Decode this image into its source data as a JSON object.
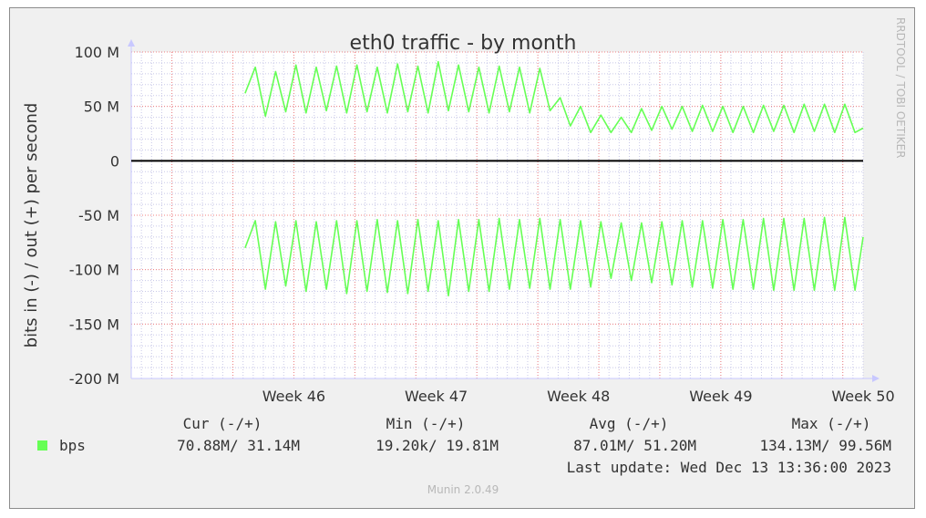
{
  "chart_data": {
    "type": "line",
    "title": "eth0 traffic - by month",
    "ylabel": "bits in (-) / out (+) per second",
    "side_label": "RRDTOOL / TOBI OETIKER",
    "ylim": [
      -200000000,
      100000000
    ],
    "y_ticks": [
      {
        "value": 100000000,
        "label": "100 M"
      },
      {
        "value": 50000000,
        "label": "50 M"
      },
      {
        "value": 0,
        "label": "0"
      },
      {
        "value": -50000000,
        "label": "-50 M"
      },
      {
        "value": -100000000,
        "label": "-100 M"
      },
      {
        "value": -150000000,
        "label": "-150 M"
      },
      {
        "value": -200000000,
        "label": "-200 M"
      }
    ],
    "x_ticks": [
      {
        "value": 8.0,
        "label": "Week 46"
      },
      {
        "value": 15.0,
        "label": "Week 47"
      },
      {
        "value": 22.0,
        "label": "Week 48"
      },
      {
        "value": 29.0,
        "label": "Week 49"
      },
      {
        "value": 36.0,
        "label": "Week 50"
      }
    ],
    "xlim": [
      0,
      36.0
    ],
    "grid": true,
    "colors": {
      "series": "#66ff55",
      "zero_line": "#000000",
      "major_grid": "#f08080",
      "minor_grid": "#c8c8e8",
      "axis": "#c8c8ff"
    },
    "series": [
      {
        "name": "bps",
        "direction": "out",
        "x": [
          5.6,
          6.1,
          6.6,
          7.1,
          7.6,
          8.1,
          8.6,
          9.1,
          9.6,
          10.1,
          10.6,
          11.1,
          11.6,
          12.1,
          12.6,
          13.1,
          13.6,
          14.1,
          14.6,
          15.1,
          15.6,
          16.1,
          16.6,
          17.1,
          17.6,
          18.1,
          18.6,
          19.1,
          19.6,
          20.1,
          20.6,
          21.1,
          21.6,
          22.1,
          22.6,
          23.1,
          23.6,
          24.1,
          24.6,
          25.1,
          25.6,
          26.1,
          26.6,
          27.1,
          27.6,
          28.1,
          28.6,
          29.1,
          29.6,
          30.1,
          30.6,
          31.1,
          31.6,
          32.1,
          32.6,
          33.1,
          33.6,
          34.1,
          34.6,
          35.1,
          35.6,
          36.0
        ],
        "values": [
          62000000,
          86000000,
          41000000,
          82000000,
          45000000,
          88000000,
          44000000,
          86000000,
          46000000,
          87000000,
          44000000,
          88000000,
          45000000,
          86000000,
          44000000,
          89000000,
          45000000,
          87000000,
          44000000,
          91000000,
          46000000,
          88000000,
          45000000,
          86000000,
          44000000,
          87000000,
          45000000,
          86000000,
          44000000,
          85000000,
          46000000,
          58000000,
          32000000,
          50000000,
          26000000,
          42000000,
          26000000,
          40000000,
          26000000,
          48000000,
          28000000,
          50000000,
          29000000,
          50000000,
          27000000,
          51000000,
          27000000,
          50000000,
          26000000,
          50000000,
          26000000,
          51000000,
          27000000,
          51000000,
          26000000,
          52000000,
          27000000,
          52000000,
          26000000,
          52000000,
          26000000,
          30000000
        ]
      },
      {
        "name": "bps",
        "direction": "in",
        "x": [
          5.6,
          6.1,
          6.6,
          7.1,
          7.6,
          8.1,
          8.6,
          9.1,
          9.6,
          10.1,
          10.6,
          11.1,
          11.6,
          12.1,
          12.6,
          13.1,
          13.6,
          14.1,
          14.6,
          15.1,
          15.6,
          16.1,
          16.6,
          17.1,
          17.6,
          18.1,
          18.6,
          19.1,
          19.6,
          20.1,
          20.6,
          21.1,
          21.6,
          22.1,
          22.6,
          23.1,
          23.6,
          24.1,
          24.6,
          25.1,
          25.6,
          26.1,
          26.6,
          27.1,
          27.6,
          28.1,
          28.6,
          29.1,
          29.6,
          30.1,
          30.6,
          31.1,
          31.6,
          32.1,
          32.6,
          33.1,
          33.6,
          34.1,
          34.6,
          35.1,
          35.6,
          36.0
        ],
        "values": [
          -80000000,
          -55000000,
          -118000000,
          -56000000,
          -115000000,
          -55000000,
          -120000000,
          -56000000,
          -118000000,
          -55000000,
          -122000000,
          -55000000,
          -120000000,
          -54000000,
          -121000000,
          -55000000,
          -122000000,
          -54000000,
          -120000000,
          -55000000,
          -124000000,
          -54000000,
          -120000000,
          -54000000,
          -120000000,
          -53000000,
          -118000000,
          -54000000,
          -117000000,
          -53000000,
          -118000000,
          -54000000,
          -118000000,
          -55000000,
          -116000000,
          -56000000,
          -108000000,
          -57000000,
          -110000000,
          -57000000,
          -112000000,
          -56000000,
          -114000000,
          -55000000,
          -116000000,
          -55000000,
          -117000000,
          -54000000,
          -118000000,
          -54000000,
          -118000000,
          -53000000,
          -119000000,
          -53000000,
          -119000000,
          -53000000,
          -119000000,
          -52000000,
          -119000000,
          -52000000,
          -119000000,
          -70000000
        ]
      }
    ]
  },
  "legend": {
    "headers": {
      "cur": "Cur (-/+)",
      "min": "Min (-/+)",
      "avg": "Avg (-/+)",
      "max": "Max (-/+)"
    },
    "rows": [
      {
        "label": "bps",
        "color": "#66ff55",
        "cur": "70.88M/ 31.14M",
        "min": "19.20k/ 19.81M",
        "avg": "87.01M/ 51.20M",
        "max": "134.13M/ 99.56M"
      }
    ]
  },
  "last_update": "Last update: Wed Dec 13 13:36:00 2023",
  "footer": "Munin 2.0.49"
}
